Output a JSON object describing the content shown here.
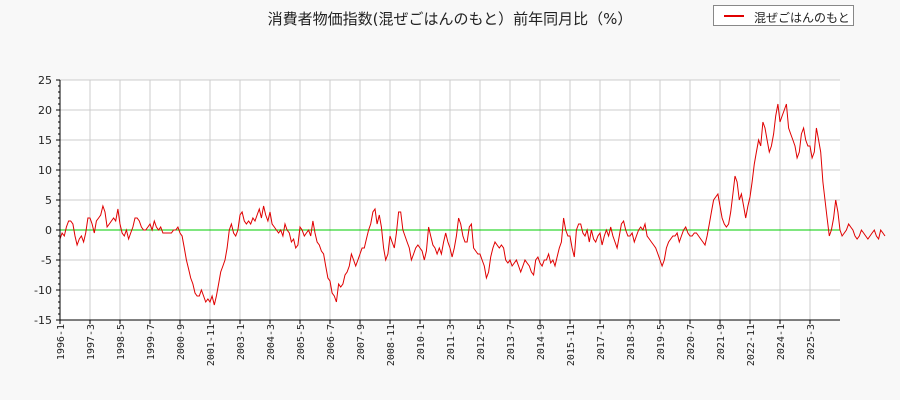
{
  "title": "消費者物価指数(混ぜごはんのもと）前年同月比（%）",
  "legend": {
    "label": "混ぜごはんのもと",
    "color": "#e00000"
  },
  "colors": {
    "series": "#e00000",
    "zero_line": "#00cc00",
    "grid": "#cccccc",
    "plot_bg": "#ffffff",
    "page_bg": "#f8f8f8"
  },
  "chart_data": {
    "type": "line",
    "title": "消費者物価指数(混ぜごはんのもと）前年同月比（%）",
    "xlabel": "",
    "ylabel": "",
    "ylim": [
      -15,
      25
    ],
    "yticks": [
      25,
      20,
      15,
      10,
      5,
      0,
      -5,
      -10,
      -15
    ],
    "xticks": [
      "1996-1",
      "1997-3",
      "1998-5",
      "1999-7",
      "2000-9",
      "2001-11",
      "2003-1",
      "2004-3",
      "2005-5",
      "2006-7",
      "2007-9",
      "2008-11",
      "2010-1",
      "2011-3",
      "2012-5",
      "2013-7",
      "2014-9",
      "2015-11",
      "2017-1",
      "2018-3",
      "2019-5",
      "2020-7",
      "2021-9",
      "2022-11",
      "2024-1",
      "2025-3"
    ],
    "grid": true,
    "legend_position": "top-right",
    "x_start": "1996-1",
    "x_step_months": 1,
    "series": [
      {
        "name": "混ぜごはんのもと",
        "values": [
          -1.5,
          -0.5,
          -1,
          0.5,
          1.5,
          1.5,
          1,
          -1,
          -2.5,
          -1.5,
          -1,
          -2,
          -0.5,
          2,
          2,
          1,
          -0.5,
          1.5,
          2,
          2.5,
          4,
          3,
          0.5,
          1,
          1.5,
          2,
          1.5,
          3.5,
          1,
          -0.5,
          -1,
          0,
          -1.5,
          -0.5,
          0.5,
          2,
          2,
          1.5,
          0.5,
          0,
          0,
          0.5,
          1,
          0,
          1.5,
          0.5,
          0,
          0.5,
          -0.5,
          -0.5,
          -0.5,
          -0.5,
          -0.5,
          0,
          0,
          0.5,
          -0.5,
          -1,
          -3,
          -5,
          -6.5,
          -8,
          -9,
          -10.5,
          -11,
          -11,
          -10,
          -11,
          -12,
          -11.5,
          -12,
          -11,
          -12.5,
          -11,
          -9,
          -7,
          -6,
          -5,
          -3,
          0,
          1,
          -0.5,
          -1,
          0,
          2.5,
          3,
          1.5,
          1,
          1.5,
          1,
          2,
          1.5,
          2.5,
          3.5,
          2,
          4,
          2.5,
          1.5,
          3,
          1,
          0.5,
          0,
          -0.5,
          0,
          -1,
          1,
          0,
          -0.5,
          -2,
          -1.5,
          -3,
          -2.5,
          0.5,
          0,
          -1,
          -0.5,
          0,
          -1,
          1.5,
          -0.5,
          -2,
          -2.5,
          -3.5,
          -4,
          -6,
          -8,
          -8.5,
          -10.5,
          -11,
          -12,
          -9,
          -9.5,
          -9,
          -7.5,
          -7,
          -6,
          -4,
          -5,
          -6,
          -5,
          -4,
          -3,
          -3,
          -1.5,
          0,
          1,
          3,
          3.5,
          1,
          2.5,
          0.5,
          -3,
          -5,
          -4,
          -1,
          -2,
          -3,
          -0.5,
          3,
          3,
          0,
          -1,
          -2,
          -3,
          -5,
          -4,
          -3,
          -2.5,
          -3,
          -3.5,
          -5,
          -3.5,
          0.5,
          -1,
          -2.5,
          -3,
          -4,
          -3,
          -4,
          -2,
          -0.5,
          -2,
          -3,
          -4.5,
          -3,
          -1,
          2,
          1,
          -1,
          -2,
          -2,
          0.5,
          1,
          -3,
          -3.5,
          -4,
          -4,
          -5,
          -6,
          -8,
          -7,
          -4.5,
          -3,
          -2,
          -2.5,
          -3,
          -2.5,
          -3,
          -5,
          -5.5,
          -5,
          -6,
          -5.5,
          -5,
          -6,
          -7,
          -6,
          -5,
          -5.5,
          -6,
          -7,
          -7.5,
          -5,
          -4.5,
          -5.5,
          -6,
          -5,
          -5,
          -4,
          -5.5,
          -5,
          -6,
          -4.5,
          -3,
          -2,
          2,
          0,
          -1,
          -1,
          -3,
          -4.5,
          0,
          1,
          1,
          -0.5,
          -1,
          0,
          -2,
          0,
          -1.5,
          -2,
          -1,
          -0.5,
          -2.5,
          -1,
          0,
          -1,
          0.5,
          -1,
          -2,
          -3,
          -1,
          1,
          1.5,
          0,
          -1,
          -1,
          -0.5,
          -2,
          -1,
          0,
          0.5,
          0,
          1,
          -1,
          -1.5,
          -2,
          -2.5,
          -3,
          -4,
          -5,
          -6,
          -5,
          -3,
          -2,
          -1.5,
          -1,
          -1,
          -0.5,
          -2,
          -1,
          0,
          0.5,
          -0.5,
          -1,
          -1,
          -0.5,
          -0.5,
          -1,
          -1.5,
          -2,
          -2.5,
          -1,
          1,
          3,
          5,
          5.5,
          6,
          4,
          2,
          1,
          0.5,
          1,
          3,
          6,
          9,
          8,
          5,
          6,
          4,
          2,
          4,
          5.5,
          8,
          11,
          13,
          15,
          14,
          18,
          17,
          15,
          13,
          14,
          16,
          19,
          21,
          18,
          19,
          20,
          21,
          17,
          16,
          15,
          14,
          12,
          13,
          16,
          17,
          15,
          14,
          14,
          12,
          13,
          17,
          15,
          13,
          8,
          5,
          2,
          -1,
          0,
          2,
          5,
          3,
          0,
          -1,
          -0.5,
          0,
          1,
          0.5,
          0,
          -1,
          -1.5,
          -1,
          0,
          -0.5,
          -1,
          -1.5,
          -1,
          -0.5,
          0,
          -1,
          -1.5,
          0,
          -0.5,
          -1
        ],
        "note": "Values approximate, read visually from chart; monthly from 1996-1"
      }
    ]
  }
}
